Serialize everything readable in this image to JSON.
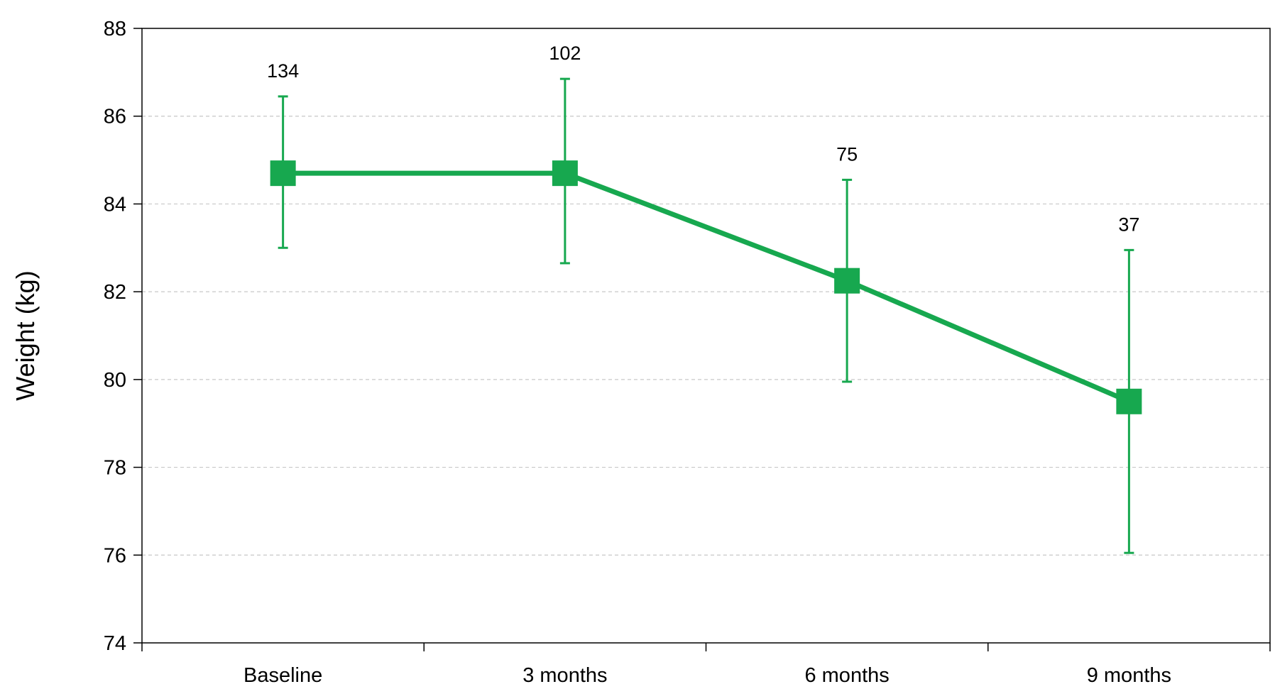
{
  "chart_data": {
    "type": "line",
    "title": "",
    "xlabel": "",
    "ylabel": "Weight (kg)",
    "ylim": [
      74,
      88
    ],
    "yticks": [
      74,
      76,
      78,
      80,
      82,
      84,
      86,
      88
    ],
    "grid": true,
    "categories": [
      "Baseline",
      "3 months",
      "6 months",
      "9 months"
    ],
    "series": [
      {
        "values": [
          84.7,
          84.7,
          82.25,
          79.5
        ],
        "error_low": [
          83.0,
          82.65,
          79.95,
          76.05
        ],
        "error_high": [
          86.45,
          86.85,
          84.55,
          82.95
        ],
        "data_labels": [
          "134",
          "102",
          "75",
          "37"
        ],
        "color": "#17a84f"
      }
    ]
  }
}
